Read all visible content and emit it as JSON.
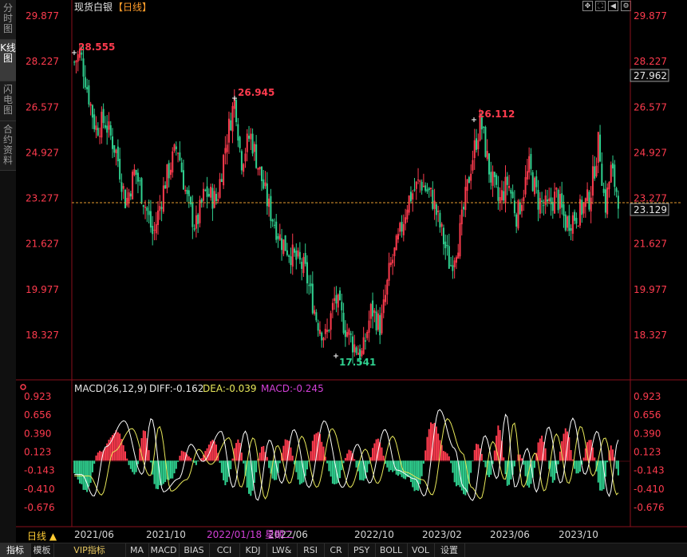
{
  "title": {
    "name": "现货白银",
    "period": "【日线】"
  },
  "side_tabs": [
    {
      "label": "分时图",
      "active": false
    },
    {
      "label": "K线图",
      "active": true
    },
    {
      "label": "闪电图",
      "active": false
    },
    {
      "label": "合约资料",
      "active": false
    }
  ],
  "toolbar_icons": [
    "move-icon",
    "fullscreen-icon",
    "play-back-icon",
    "settings-icon"
  ],
  "price_axis": {
    "ticks": [
      "29.877",
      "28.227",
      "26.577",
      "24.927",
      "23.277",
      "21.627",
      "19.977",
      "18.327"
    ],
    "last_price": "27.962",
    "current_price": "23.129"
  },
  "annotations": {
    "high_1": "28.555",
    "high_2": "26.945",
    "high_3": "26.112",
    "low_1": "17.541"
  },
  "macd": {
    "label": "MACD(26,12,9)",
    "diff": "DIFF:-0.162",
    "dea": "DEA:-0.039",
    "macd": "MACD:-0.245",
    "ticks": [
      "0.923",
      "0.656",
      "0.390",
      "0.123",
      "-0.143",
      "-0.410",
      "-0.676"
    ]
  },
  "time_axis": {
    "period_button": "日线 ▲",
    "labels": [
      "2021/06",
      "2021/10",
      "2022/06",
      "2022/10",
      "2023/02",
      "2023/06",
      "2023/10"
    ],
    "cursor_label": "2022/01/18 星期二"
  },
  "bottom_tabs": [
    "指标",
    "模板",
    "VIP指标",
    "MA",
    "MACD",
    "BIAS",
    "CCI",
    "KDJ",
    "LW&",
    "RSI",
    "CR",
    "PSY",
    "BOLL",
    "VOL",
    "设置"
  ],
  "colors": {
    "up": "#ff3b4e",
    "down": "#2fd08f",
    "axis_text": "#ff3b4e",
    "dea_line": "#e8e85a",
    "diff_line": "#ffffff",
    "macd_text": "#d340d8",
    "dashed": "#e69a2e"
  },
  "chart_data": [
    {
      "type": "candlestick",
      "title": "现货白银【日线】",
      "ylim": [
        17.5,
        29.877
      ],
      "y_ticks": [
        29.877,
        28.227,
        26.577,
        24.927,
        23.277,
        21.627,
        19.977,
        18.327
      ],
      "x_labels": [
        "2021/06",
        "2021/10",
        "2022/06",
        "2022/10",
        "2023/02",
        "2023/06",
        "2023/10"
      ],
      "reference_price": 23.129,
      "marked_levels": [
        28.555,
        26.945,
        26.112,
        17.541
      ],
      "close_path": [
        {
          "x": 0.0,
          "y": 28.2
        },
        {
          "x": 0.01,
          "y": 28.55
        },
        {
          "x": 0.02,
          "y": 27.4
        },
        {
          "x": 0.035,
          "y": 25.8
        },
        {
          "x": 0.05,
          "y": 26.1
        },
        {
          "x": 0.07,
          "y": 24.9
        },
        {
          "x": 0.085,
          "y": 23.1
        },
        {
          "x": 0.1,
          "y": 24.3
        },
        {
          "x": 0.12,
          "y": 22.8
        },
        {
          "x": 0.13,
          "y": 21.9
        },
        {
          "x": 0.15,
          "y": 23.9
        },
        {
          "x": 0.17,
          "y": 25.2
        },
        {
          "x": 0.185,
          "y": 23.3
        },
        {
          "x": 0.2,
          "y": 22.2
        },
        {
          "x": 0.215,
          "y": 23.5
        },
        {
          "x": 0.235,
          "y": 23.2
        },
        {
          "x": 0.25,
          "y": 25.3
        },
        {
          "x": 0.265,
          "y": 26.94
        },
        {
          "x": 0.275,
          "y": 24.6
        },
        {
          "x": 0.29,
          "y": 25.6
        },
        {
          "x": 0.305,
          "y": 24.3
        },
        {
          "x": 0.32,
          "y": 23.0
        },
        {
          "x": 0.34,
          "y": 21.8
        },
        {
          "x": 0.36,
          "y": 21.2
        },
        {
          "x": 0.38,
          "y": 20.7
        },
        {
          "x": 0.4,
          "y": 18.9
        },
        {
          "x": 0.415,
          "y": 18.2
        },
        {
          "x": 0.43,
          "y": 19.7
        },
        {
          "x": 0.445,
          "y": 18.7
        },
        {
          "x": 0.46,
          "y": 18.0
        },
        {
          "x": 0.475,
          "y": 17.6
        },
        {
          "x": 0.49,
          "y": 19.3
        },
        {
          "x": 0.505,
          "y": 18.6
        },
        {
          "x": 0.52,
          "y": 20.7
        },
        {
          "x": 0.535,
          "y": 21.8
        },
        {
          "x": 0.55,
          "y": 23.2
        },
        {
          "x": 0.57,
          "y": 23.9
        },
        {
          "x": 0.59,
          "y": 23.3
        },
        {
          "x": 0.605,
          "y": 22.1
        },
        {
          "x": 0.62,
          "y": 20.8
        },
        {
          "x": 0.635,
          "y": 21.9
        },
        {
          "x": 0.655,
          "y": 24.6
        },
        {
          "x": 0.67,
          "y": 26.1
        },
        {
          "x": 0.685,
          "y": 24.2
        },
        {
          "x": 0.7,
          "y": 23.1
        },
        {
          "x": 0.715,
          "y": 23.9
        },
        {
          "x": 0.73,
          "y": 22.6
        },
        {
          "x": 0.75,
          "y": 24.4
        },
        {
          "x": 0.765,
          "y": 23.2
        },
        {
          "x": 0.78,
          "y": 22.9
        },
        {
          "x": 0.795,
          "y": 23.4
        },
        {
          "x": 0.81,
          "y": 22.4
        },
        {
          "x": 0.83,
          "y": 22.7
        },
        {
          "x": 0.85,
          "y": 23.3
        },
        {
          "x": 0.865,
          "y": 25.4
        },
        {
          "x": 0.875,
          "y": 22.9
        },
        {
          "x": 0.885,
          "y": 24.3
        },
        {
          "x": 0.9,
          "y": 23.1
        }
      ]
    },
    {
      "type": "bar",
      "title": "MACD(26,12,9)",
      "ylim": [
        -0.78,
        0.97
      ],
      "y_ticks": [
        0.923,
        0.656,
        0.39,
        0.123,
        -0.143,
        -0.41,
        -0.676
      ],
      "series": [
        {
          "name": "DIFF",
          "last": -0.162
        },
        {
          "name": "DEA",
          "last": -0.039
        },
        {
          "name": "MACD",
          "last": -0.245
        }
      ],
      "histogram_path": [
        {
          "x": 0.0,
          "y": -0.2
        },
        {
          "x": 0.02,
          "y": -0.45
        },
        {
          "x": 0.04,
          "y": 0.12
        },
        {
          "x": 0.07,
          "y": 0.42
        },
        {
          "x": 0.1,
          "y": -0.2
        },
        {
          "x": 0.115,
          "y": 0.45
        },
        {
          "x": 0.135,
          "y": -0.4
        },
        {
          "x": 0.16,
          "y": -0.25
        },
        {
          "x": 0.18,
          "y": 0.15
        },
        {
          "x": 0.2,
          "y": -0.05
        },
        {
          "x": 0.23,
          "y": 0.3
        },
        {
          "x": 0.25,
          "y": -0.35
        },
        {
          "x": 0.27,
          "y": 0.3
        },
        {
          "x": 0.29,
          "y": -0.5
        },
        {
          "x": 0.31,
          "y": 0.2
        },
        {
          "x": 0.33,
          "y": -0.3
        },
        {
          "x": 0.35,
          "y": 0.32
        },
        {
          "x": 0.375,
          "y": -0.35
        },
        {
          "x": 0.4,
          "y": 0.42
        },
        {
          "x": 0.43,
          "y": -0.35
        },
        {
          "x": 0.455,
          "y": 0.15
        },
        {
          "x": 0.475,
          "y": -0.3
        },
        {
          "x": 0.5,
          "y": 0.32
        },
        {
          "x": 0.52,
          "y": -0.15
        },
        {
          "x": 0.55,
          "y": -0.25
        },
        {
          "x": 0.565,
          "y": -0.45
        },
        {
          "x": 0.59,
          "y": 0.55
        },
        {
          "x": 0.615,
          "y": 0.1
        },
        {
          "x": 0.63,
          "y": -0.35
        },
        {
          "x": 0.645,
          "y": -0.5
        },
        {
          "x": 0.665,
          "y": 0.25
        },
        {
          "x": 0.685,
          "y": -0.25
        },
        {
          "x": 0.7,
          "y": 0.5
        },
        {
          "x": 0.715,
          "y": -0.35
        },
        {
          "x": 0.735,
          "y": 0.1
        },
        {
          "x": 0.75,
          "y": -0.4
        },
        {
          "x": 0.77,
          "y": 0.35
        },
        {
          "x": 0.79,
          "y": -0.3
        },
        {
          "x": 0.81,
          "y": 0.45
        },
        {
          "x": 0.83,
          "y": -0.2
        },
        {
          "x": 0.85,
          "y": 0.3
        },
        {
          "x": 0.87,
          "y": -0.45
        },
        {
          "x": 0.885,
          "y": 0.2
        },
        {
          "x": 0.9,
          "y": -0.25
        }
      ]
    }
  ]
}
